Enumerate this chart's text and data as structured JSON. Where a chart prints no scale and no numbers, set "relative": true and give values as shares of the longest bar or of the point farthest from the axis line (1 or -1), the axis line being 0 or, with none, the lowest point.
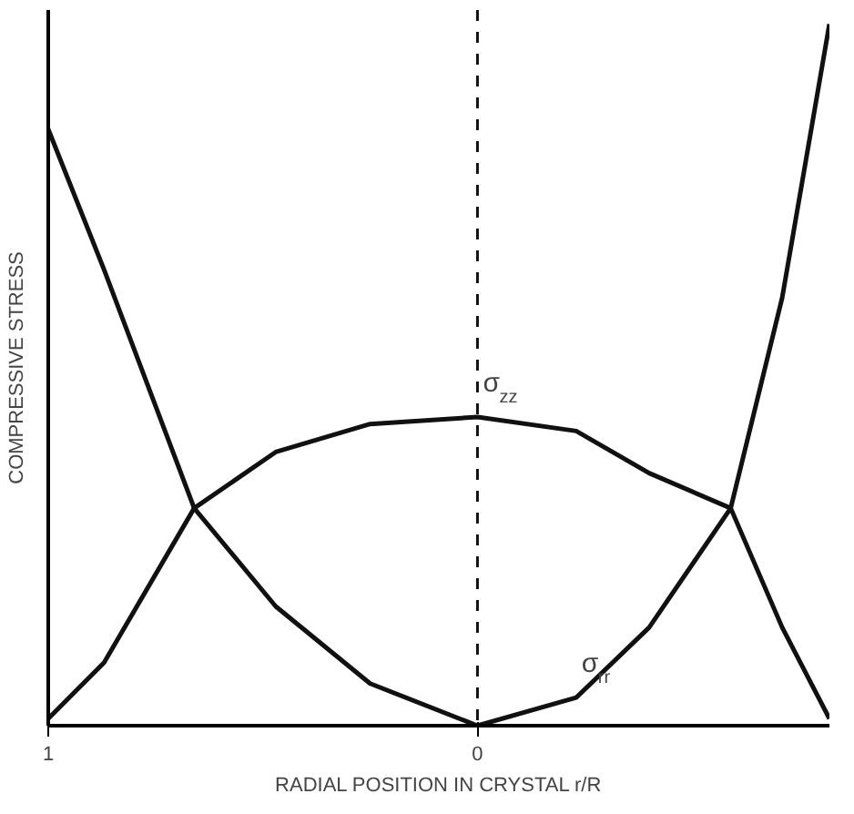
{
  "chart_data": {
    "type": "line",
    "relative": true,
    "xlabel": "RADIAL POSITION IN CRYSTAL r/R",
    "ylabel": "COMPRESSIVE STRESS",
    "x": [
      1.0,
      0.87,
      0.66,
      0.47,
      0.25,
      0,
      -0.23,
      -0.4,
      -0.59,
      -0.71,
      -0.82
    ],
    "xlim": [
      1.0,
      -0.82
    ],
    "xticks": [
      1,
      0
    ],
    "series": [
      {
        "color": "#111111",
        "values": [
          0.01,
          0.09,
          0.31,
          0.39,
          0.43,
          0.44,
          0.42,
          0.36,
          0.31,
          0.14,
          0.01
        ]
      },
      {
        "color": "#111111",
        "values": [
          0.85,
          0.65,
          0.31,
          0.17,
          0.06,
          0.0,
          0.04,
          0.14,
          0.31,
          0.61,
          1.0
        ]
      }
    ],
    "ref_lines": [
      {
        "axis": "x",
        "value": 0,
        "line_style": "dashed",
        "color": "#111111"
      }
    ],
    "annotations": [
      {
        "text": "σ$_{zz}$",
        "x": 0,
        "y": 0.44
      },
      {
        "text": "σ$_{rr}$",
        "x": -0.23,
        "y": 0.04
      }
    ],
    "grid": false,
    "marker": "none",
    "line_style": "solid"
  }
}
